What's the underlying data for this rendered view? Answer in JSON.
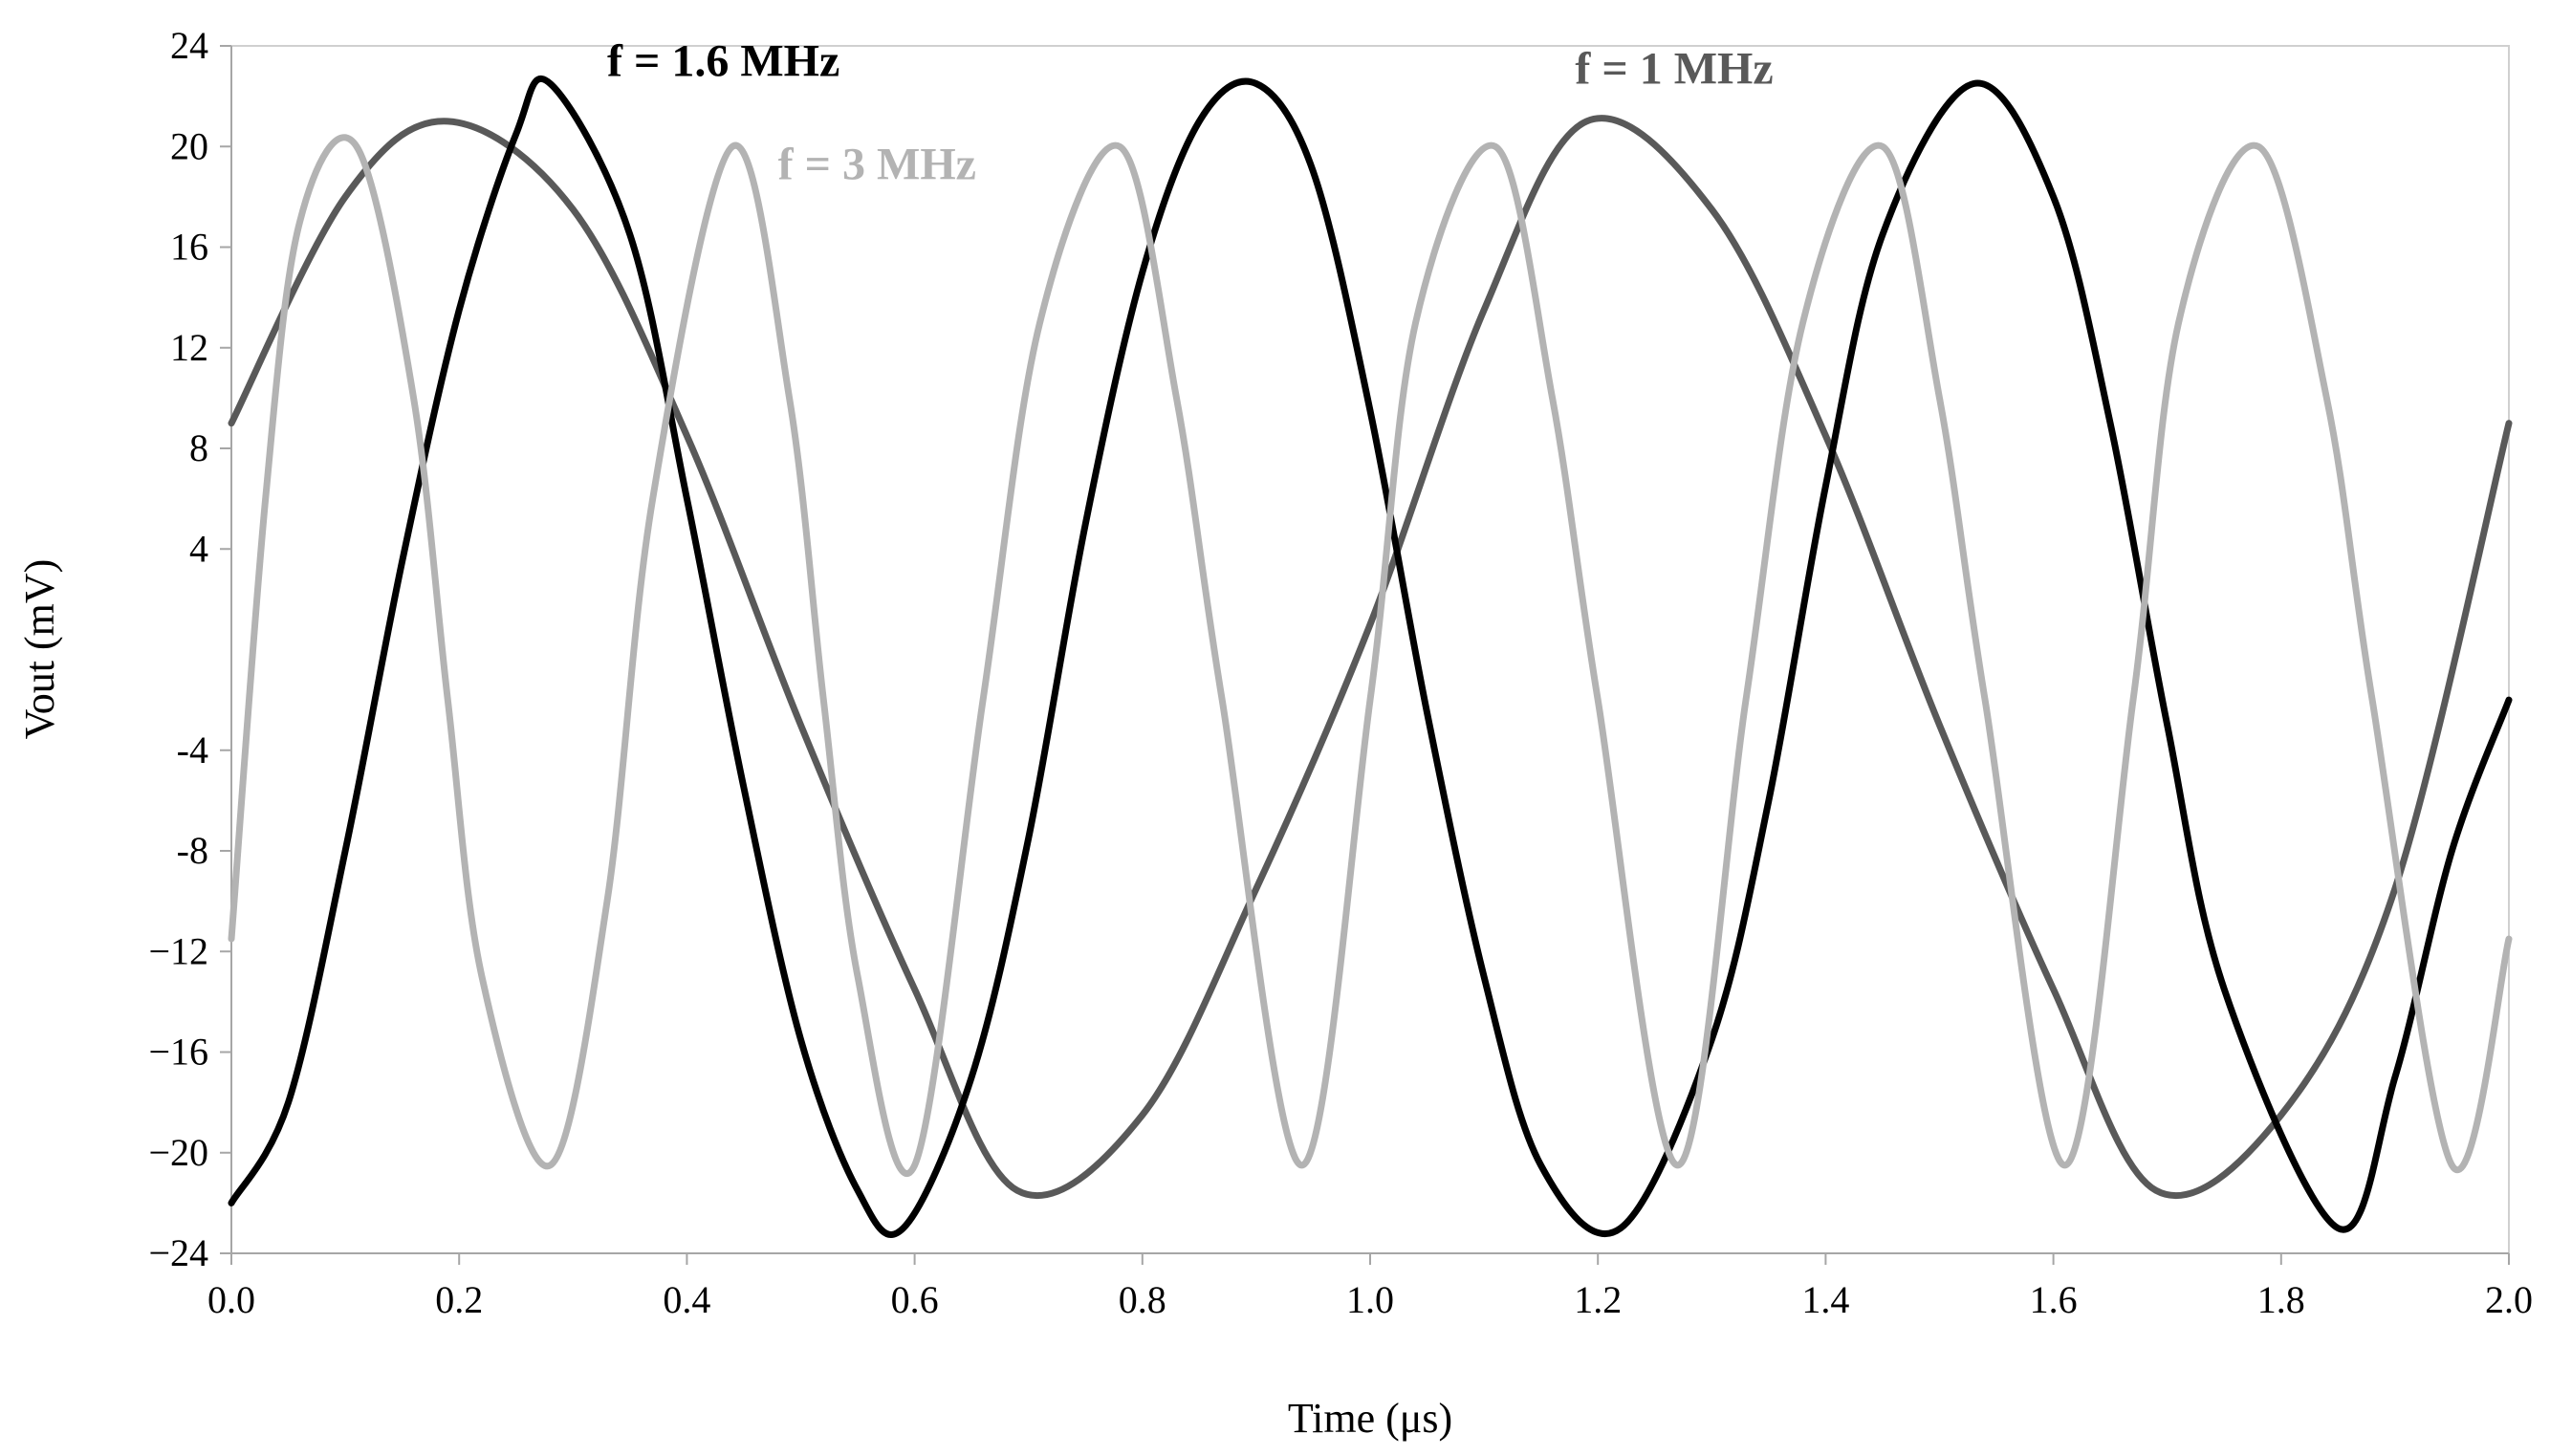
{
  "chart_data": {
    "type": "line",
    "title": "",
    "xlabel": "Time (μs)",
    "ylabel": "Vout (mV)",
    "xlim": [
      0,
      2.0
    ],
    "ylim": [
      -24,
      24
    ],
    "x_ticks": [
      0.0,
      0.2,
      0.4,
      0.6,
      0.8,
      1.0,
      1.2,
      1.4,
      1.6,
      1.8,
      2.0
    ],
    "x_tick_labels": [
      "0.0",
      "0.2",
      "0.4",
      "0.6",
      "0.8",
      "1.0",
      "1.2",
      "1.4",
      "1.6",
      "1.8",
      "2.0"
    ],
    "y_ticks": [
      24,
      20,
      16,
      12,
      8,
      4,
      -4,
      -8,
      -12,
      -16,
      -20,
      -24
    ],
    "y_tick_labels": [
      "24",
      "20",
      "16",
      "12",
      "8",
      "4",
      "-4",
      "-8",
      "−12",
      "−16",
      "−20",
      "−24"
    ],
    "grid": false,
    "legend": "inline labels",
    "series": [
      {
        "name": "f = 1 MHz",
        "color": "#595959",
        "x": [
          0.0,
          0.1,
          0.19,
          0.3,
          0.4,
          0.5,
          0.6,
          0.69,
          0.8,
          0.9,
          1.0,
          1.1,
          1.19,
          1.3,
          1.4,
          1.5,
          1.6,
          1.69,
          1.8,
          1.9,
          2.0
        ],
        "values": [
          9.0,
          18.0,
          21.0,
          17.5,
          8.5,
          -3.0,
          -13.5,
          -21.5,
          -18.5,
          -9.5,
          1.0,
          13.5,
          21.0,
          17.5,
          8.5,
          -3.0,
          -13.5,
          -21.5,
          -18.5,
          -9.5,
          9.0
        ]
      },
      {
        "name": "f = 1.6 MHz",
        "color": "#000000",
        "x": [
          0.0,
          0.05,
          0.1,
          0.15,
          0.2,
          0.25,
          0.28,
          0.35,
          0.4,
          0.45,
          0.5,
          0.55,
          0.59,
          0.65,
          0.7,
          0.75,
          0.8,
          0.85,
          0.9,
          0.95,
          1.0,
          1.05,
          1.1,
          1.15,
          1.22,
          1.3,
          1.35,
          1.4,
          1.45,
          1.53,
          1.6,
          1.65,
          1.7,
          1.75,
          1.85,
          1.9,
          1.95,
          2.0
        ],
        "values": [
          -22.0,
          -18.0,
          -8.0,
          3.5,
          13.5,
          20.5,
          22.5,
          16.5,
          6.0,
          -5.5,
          -15.5,
          -21.5,
          -23.0,
          -17.0,
          -7.5,
          5.0,
          15.0,
          21.0,
          22.5,
          19.0,
          9.5,
          -2.5,
          -13.0,
          -20.5,
          -23.0,
          -15.5,
          -6.0,
          6.5,
          16.5,
          22.5,
          18.0,
          9.0,
          -3.0,
          -13.5,
          -23.0,
          -17.0,
          -8.0,
          -2.0
        ]
      },
      {
        "name": "f = 3 MHz",
        "color": "#b3b3b3",
        "x": [
          0.0,
          0.03,
          0.06,
          0.11,
          0.16,
          0.19,
          0.22,
          0.28,
          0.33,
          0.37,
          0.44,
          0.49,
          0.52,
          0.55,
          0.6,
          0.66,
          0.71,
          0.78,
          0.83,
          0.87,
          0.94,
          1.0,
          1.04,
          1.11,
          1.16,
          1.2,
          1.27,
          1.33,
          1.38,
          1.45,
          1.5,
          1.54,
          1.61,
          1.67,
          1.71,
          1.78,
          1.84,
          1.88,
          1.95,
          2.0
        ],
        "values": [
          -11.5,
          6.0,
          17.0,
          20.0,
          10.0,
          -2.0,
          -13.0,
          -20.5,
          -10.0,
          6.0,
          20.0,
          10.0,
          -2.0,
          -13.0,
          -20.5,
          -2.0,
          13.0,
          20.0,
          10.0,
          -2.0,
          -20.5,
          -2.0,
          13.0,
          20.0,
          10.0,
          -2.0,
          -20.5,
          -2.0,
          13.0,
          20.0,
          10.0,
          -2.0,
          -20.5,
          -2.0,
          13.0,
          20.0,
          10.0,
          -2.0,
          -20.5,
          -11.5
        ]
      }
    ],
    "annotations": [
      {
        "text": "f = 1.6 MHz",
        "series": "f = 1.6 MHz",
        "x": 0.33,
        "y": 22.8
      },
      {
        "text": "f = 3 MHz",
        "series": "f = 3 MHz",
        "x": 0.48,
        "y": 18.7
      },
      {
        "text": "f = 1 MHz",
        "series": "f = 1 MHz",
        "x": 1.18,
        "y": 22.5
      }
    ]
  }
}
